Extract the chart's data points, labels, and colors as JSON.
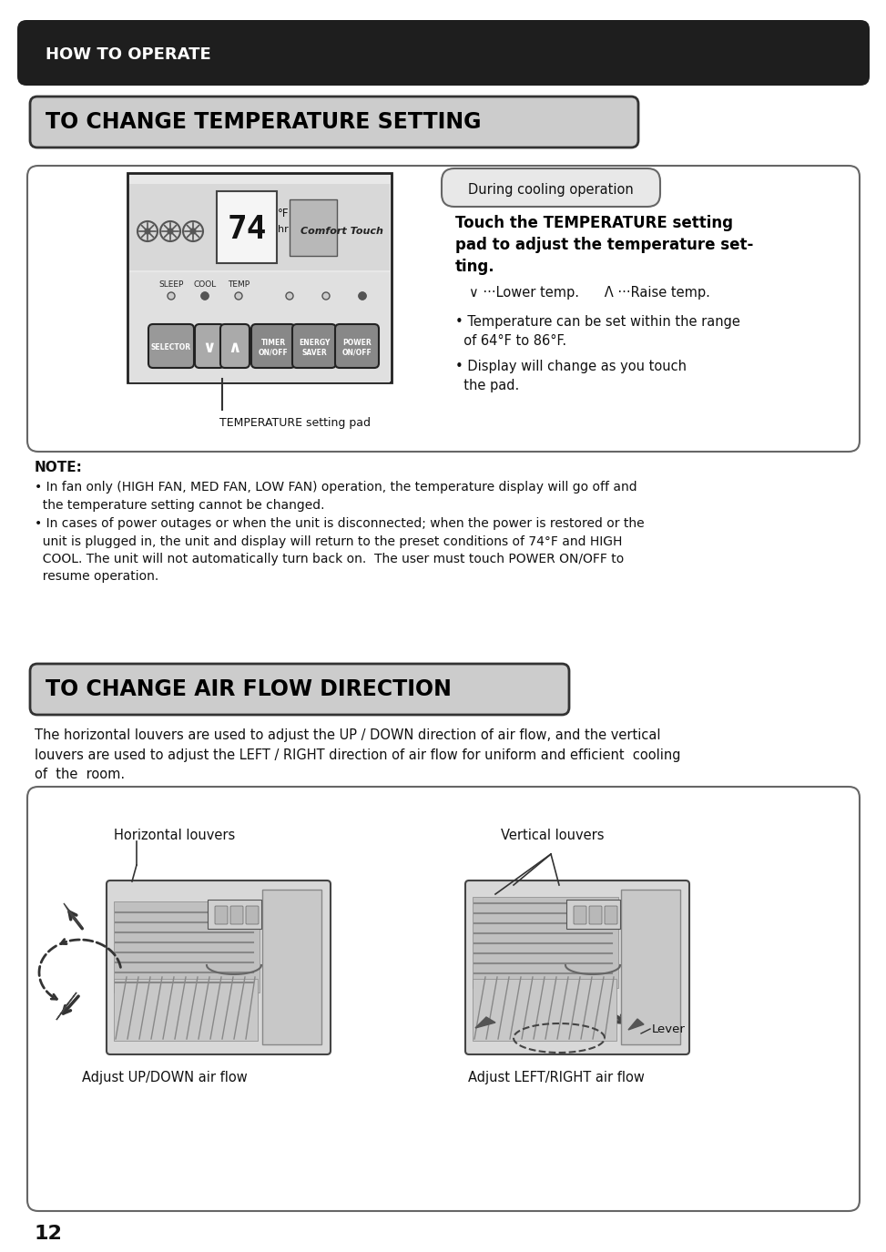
{
  "bg_color": "#ffffff",
  "header_bg": "#1e1e1e",
  "header_text": "HOW TO OPERATE",
  "section1_title": "TO CHANGE TEMPERATURE SETTING",
  "during_cooling_label": "During cooling operation",
  "touch_temp_line1": "Touch the TEMPERATURE setting",
  "touch_temp_line2": "pad to adjust the temperature set-",
  "touch_temp_line3": "ting.",
  "lower_raise": "∨ ···Lower temp.      Λ ···Raise temp.",
  "bullet_temp_range": "• Temperature can be set within the range\n  of 64°F to 86°F.",
  "bullet_display": "• Display will change as you touch\n  the pad.",
  "temp_pad_label": "TEMPERATURE setting pad",
  "note_label": "NOTE:",
  "note1": "• In fan only (HIGH FAN, MED FAN, LOW FAN) operation, the temperature display will go off and\n  the temperature setting cannot be changed.",
  "note2": "• In cases of power outages or when the unit is disconnected; when the power is restored or the\n  unit is plugged in, the unit and display will return to the preset conditions of 74°F and HIGH\n  COOL. The unit will not automatically turn back on.  The user must touch POWER ON/OFF to\n  resume operation.",
  "section2_title": "TO CHANGE AIR FLOW DIRECTION",
  "airflow_intro": "The horizontal louvers are used to adjust the UP / DOWN direction of air flow, and the vertical\nlouvers are used to adjust the LEFT / RIGHT direction of air flow for uniform and efficient  cooling\nof  the  room.",
  "horiz_label": "Horizontal louvers",
  "vert_label": "Vertical louvers",
  "adjust_updown": "Adjust UP/DOWN air flow",
  "adjust_leftright": "Adjust LEFT/RIGHT air flow",
  "lever_label": "Lever",
  "page_number": "12"
}
